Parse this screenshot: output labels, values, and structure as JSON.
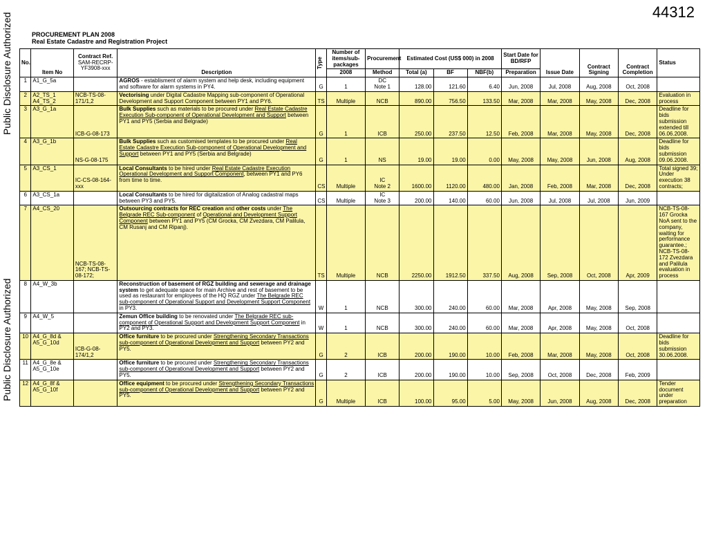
{
  "pageNumber": "44312",
  "watermark": "Public Disclosure Authorized",
  "titles": {
    "line1": "PROCUREMENT PLAN 2008",
    "line2": "Real Estate Cadastre and Registration Project"
  },
  "headers": {
    "no": "No.",
    "itemNo": "Item No",
    "contractRef1": "Contract Ref.",
    "contractRef2": "SAM-RECRP-",
    "contractRef3": "YF3908-xxx",
    "description": "Description",
    "type": "Type",
    "packages1": "Number of items/sub-packages",
    "packages2": "2008",
    "procurement1": "Procurement",
    "procurement2": "Method",
    "estimated": "Estimated Cost (US$ 000) in 2008",
    "total": "Total (a)",
    "bf": "BF",
    "nbf": "NBF(b)",
    "startDate1": "Start Date for BD/RFP",
    "startDate2": "Preparation",
    "issueDate": "Issue Date",
    "contractSigning": "Contract Signing",
    "contractCompletion1": "Contract",
    "contractCompletion2": "Completion",
    "status": "Status"
  },
  "rows": [
    {
      "no": "1",
      "item": "A1_G_5a",
      "ref": "",
      "desc": "<b>AGROS</b> - establisment of alarm system and help desk, including equipment and software for alarm systems in PY4.",
      "type": "G",
      "pkg": "1",
      "proc": "DC\nNote 1",
      "total": "128.00",
      "bf": "121.60",
      "nbf": "6.40",
      "d1": "Jun, 2008",
      "d2": "Jul, 2008",
      "d3": "Aug, 2008",
      "d4": "Oct, 2008",
      "status": "",
      "yellow": false
    },
    {
      "no": "2",
      "item": "A2_TS_1\nA4_TS_2",
      "ref": "NCB-TS-08-171/1,2",
      "desc": "<b>Vectorising</b> under Digital Cadastre Mapping sub-component of Operational Development and Support Component between PY1 and PY6.",
      "type": "TS",
      "pkg": "Multiple",
      "proc": "NCB",
      "total": "890.00",
      "bf": "756.50",
      "nbf": "133.50",
      "d1": "Mar, 2008",
      "d2": "Mar, 2008",
      "d3": "May, 2008",
      "d4": "Dec, 2008",
      "status": "Evaluation in process",
      "yellow": true
    },
    {
      "no": "3",
      "item": "A3_G_1a",
      "ref": "ICB-G-08-173",
      "desc": "<b>Bulk Supplies</b> such as materials to be procured under <u>Real Estate Cadastre Execution Sub-component of Operational Development and Support</u> between PY1 and PY5 (Serbia and Belgrade)",
      "type": "G",
      "pkg": "1",
      "proc": "ICB",
      "total": "250.00",
      "bf": "237.50",
      "nbf": "12.50",
      "d1": "Feb, 2008",
      "d2": "Mar, 2008",
      "d3": "May, 2008",
      "d4": "Dec, 2008",
      "status": "Deadline for bids submission extended till 06.06.2008.",
      "yellow": true
    },
    {
      "no": "4",
      "item": "A3_G_1b",
      "ref": "NS-G-08-175",
      "desc": "<b>Bulk Supplies</b> such as customised templates to be procured under <u>Real Estate Cadastre Execution Sub-component of Operational Development and Support</u> between PY1 and PY5 (Serbia and Belgrade)",
      "type": "G",
      "pkg": "1",
      "proc": "NS",
      "total": "19.00",
      "bf": "19.00",
      "nbf": "0.00",
      "d1": "May, 2008",
      "d2": "May, 2008",
      "d3": "Jun, 2008",
      "d4": "Aug, 2008",
      "status": "Deadline for bids submission 09.06.2008.",
      "yellow": true
    },
    {
      "no": "5",
      "item": "A3_CS_1",
      "ref": "IC-CS-08-164-xxx",
      "desc": "<b>Local Consultants</b> to be hired under <u>Real Estate Cadastre Execution Operational Development and Support Component</u>, between PY1 and PY6 from time to time.",
      "type": "CS",
      "pkg": "Multiple",
      "proc": "IC\nNote 2",
      "total": "1600.00",
      "bf": "1120.00",
      "nbf": "480.00",
      "d1": "Jan, 2008",
      "d2": "Feb, 2008",
      "d3": "Mar, 2008",
      "d4": "Dec, 2008",
      "status": "Total signed 39; Under execution 38 contracts;",
      "yellow": true
    },
    {
      "no": "6",
      "item": "A3_CS_1a",
      "ref": "",
      "desc": "<b>Local Consultants</b> to be hired for digitalization of Analog cadastral maps between PY3 and PY5.",
      "type": "CS",
      "pkg": "Multiple",
      "proc": "IC\nNote 3",
      "total": "200.00",
      "bf": "140.00",
      "nbf": "60.00",
      "d1": "Jun, 2008",
      "d2": "Jul, 2008",
      "d3": "Jul, 2008",
      "d4": "Jun, 2009",
      "status": "",
      "yellow": false
    },
    {
      "no": "7",
      "item": "A4_CS_20",
      "ref": "NCB-TS-08-167; NCB-TS-08-172;",
      "desc": "<b>Outsourcing contracts for REC creation</b> and <b>other costs</b> under <u>The Belgrade REC Sub-component</u> of <u>Operational and Development Support Component</u> between PY1 and PY5 (CM Grocka, CM Zvezdara, CM Palilula, CM Rusanj and CM Ripanj).",
      "type": "TS",
      "pkg": "Multiple",
      "proc": "NCB",
      "total": "2250.00",
      "bf": "1912.50",
      "nbf": "337.50",
      "d1": "Aug, 2008",
      "d2": "Sep, 2008",
      "d3": "Oct, 2008",
      "d4": "Apr, 2009",
      "status": "NCB-TS-08-167 Grocka NoA sent to the company, waiting for performance guarantee.; NCB-TS-08-172 Zvezdara and Palilula evaluation in process",
      "yellow": true
    },
    {
      "no": "8",
      "item": "A4_W_3b",
      "ref": "",
      "desc": "<b>Reconstruction of basement of RGZ building and sewerage and drainage system</b> to get adequate space for main Archive and rest of basement to be used as restaurant for employees of the HQ RGZ under <u>The Belgrade REC sub-component of Operational Support and Development Support Component</u> in PY3.",
      "type": "W",
      "pkg": "1",
      "proc": "NCB",
      "total": "300.00",
      "bf": "240.00",
      "nbf": "60.00",
      "d1": "Mar, 2008",
      "d2": "Apr, 2008",
      "d3": "May, 2008",
      "d4": "Sep, 2008",
      "status": "",
      "yellow": false
    },
    {
      "no": "9",
      "item": "A4_W_5",
      "ref": "",
      "desc": "<b>Zemun Office building</b> to be renovated under <u>The Belgrade REC sub-component  of Operational Support and Development Support Component</u> in PY2 and PY3.",
      "type": "W",
      "pkg": "1",
      "proc": "NCB",
      "total": "300.00",
      "bf": "240.00",
      "nbf": "60.00",
      "d1": "Mar, 2008",
      "d2": "Apr, 2008",
      "d3": "May, 2008",
      "d4": "Oct, 2008",
      "status": "",
      "yellow": false
    },
    {
      "no": "10",
      "item": "A4_G_8d &\nA5_G_10d",
      "ref": "ICB-G-08-174/1,2",
      "desc": "<b>Office furniture</b> to be procured under <u>Strengthening Secondary Transactions sub-component of Operational Development and Support</u> between PY2 and PY5.",
      "type": "G",
      "pkg": "2",
      "proc": "ICB",
      "total": "200.00",
      "bf": "190.00",
      "nbf": "10.00",
      "d1": "Feb, 2008",
      "d2": "Mar, 2008",
      "d3": "May, 2008",
      "d4": "Oct, 2008",
      "status": "Deadline for bids submission 30.06.2008.",
      "yellow": true
    },
    {
      "no": "11",
      "item": "A4_G_8e &\nA5_G_10e",
      "ref": "",
      "desc": "<b>Office furniture</b> to be procured under <u>Strengthening Secondary Transactions sub-component of Operational Development and Support</u> between PY2 and PY5.",
      "type": "G",
      "pkg": "2",
      "proc": "ICB",
      "total": "200.00",
      "bf": "190.00",
      "nbf": "10.00",
      "d1": "Sep, 2008",
      "d2": "Oct, 2008",
      "d3": "Dec, 2008",
      "d4": "Feb, 2009",
      "status": "",
      "yellow": false
    },
    {
      "no": "12",
      "item": "A4_G_8f &\nA5_G_10f",
      "ref": "",
      "desc": "<b>Office equipment</b> to be procured under <u>Strengthening Secondary Transactions sub-component of Operational Development and Support</u> between PY2 and PY5.",
      "type": "G",
      "pkg": "Multiple",
      "proc": "ICB",
      "total": "100.00",
      "bf": "95.00",
      "nbf": "5.00",
      "d1": "May, 2008",
      "d2": "Jun, 2008",
      "d3": "Aug, 2008",
      "d4": "Dec, 2008",
      "status": "Tender document under preparation",
      "yellow": true
    }
  ]
}
